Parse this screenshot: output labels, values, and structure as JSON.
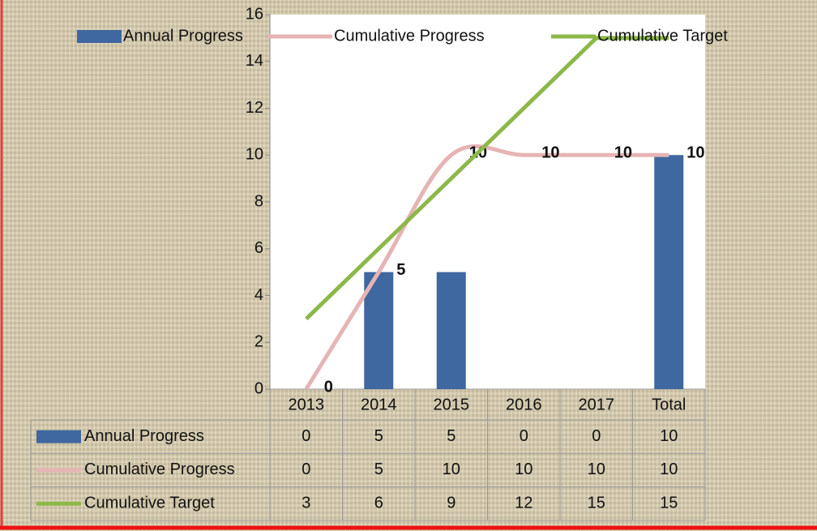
{
  "chart_data": {
    "type": "bar",
    "categories": [
      "2013",
      "2014",
      "2015",
      "2016",
      "2017",
      "Total"
    ],
    "series": [
      {
        "name": "Annual Progress",
        "type": "bar",
        "color": "#3f67a0",
        "values": [
          0,
          5,
          5,
          0,
          0,
          10
        ]
      },
      {
        "name": "Cumulative Progress",
        "type": "line",
        "smooth": true,
        "color": "#e6b4b4",
        "values": [
          0,
          5,
          10,
          10,
          10,
          10
        ],
        "data_labels": true
      },
      {
        "name": "Cumulative Target",
        "type": "line",
        "color": "#8cb84a",
        "values": [
          3,
          6,
          9,
          12,
          15,
          15
        ]
      }
    ],
    "ylim": [
      0,
      16
    ],
    "yticks": [
      0,
      2,
      4,
      6,
      8,
      10,
      12,
      14,
      16
    ],
    "legend": "top",
    "data_table": true
  }
}
